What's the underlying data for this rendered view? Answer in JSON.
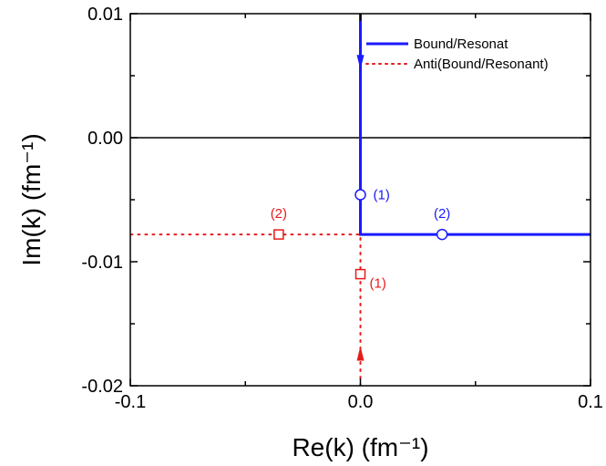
{
  "chart_data": {
    "type": "line",
    "xlabel": "Re(k) (fm⁻¹)",
    "ylabel": "Im(k) (fm⁻¹)",
    "xlim": [
      -0.1,
      0.1
    ],
    "ylim": [
      -0.02,
      0.01
    ],
    "x_ticks": [
      -0.1,
      0.0,
      0.1
    ],
    "x_tick_labels": [
      "-0.1",
      "0.0",
      "0.1"
    ],
    "y_ticks": [
      -0.02,
      -0.01,
      0.0,
      0.01
    ],
    "y_tick_labels": [
      "-0.02",
      "-0.01",
      "0.00",
      "0.01"
    ],
    "reference_line_y": 0.0,
    "legend": {
      "placement": "top-right"
    },
    "series": [
      {
        "name": "Bound/Resonat",
        "color": "#1a1aff",
        "style": "solid",
        "x": [
          0.0,
          0.0,
          0.1
        ],
        "y": [
          0.01,
          -0.0078,
          -0.0078
        ],
        "arrow": {
          "x": 0.0,
          "y": 0.0055,
          "direction": "down"
        }
      },
      {
        "name": "Anti(Bound/Resonant)",
        "color": "#e81a1a",
        "style": "dotted",
        "x": [
          0.0,
          0.0,
          -0.1
        ],
        "y": [
          -0.02,
          -0.0078,
          -0.0078
        ],
        "arrow": {
          "x": 0.0,
          "y": -0.0168,
          "direction": "up"
        }
      }
    ],
    "annotations": [
      {
        "series": 0,
        "marker": "circle",
        "x": 0.0,
        "y": -0.0046,
        "label": "(1)",
        "color": "#1a1aff"
      },
      {
        "series": 0,
        "marker": "circle",
        "x": 0.0355,
        "y": -0.0078,
        "label": "(2)",
        "color": "#1a1aff"
      },
      {
        "series": 1,
        "marker": "square",
        "x": 0.0,
        "y": -0.011,
        "label": "(1)",
        "color": "#e81a1a"
      },
      {
        "series": 1,
        "marker": "square",
        "x": -0.0355,
        "y": -0.0078,
        "label": "(2)",
        "color": "#e81a1a"
      }
    ]
  }
}
